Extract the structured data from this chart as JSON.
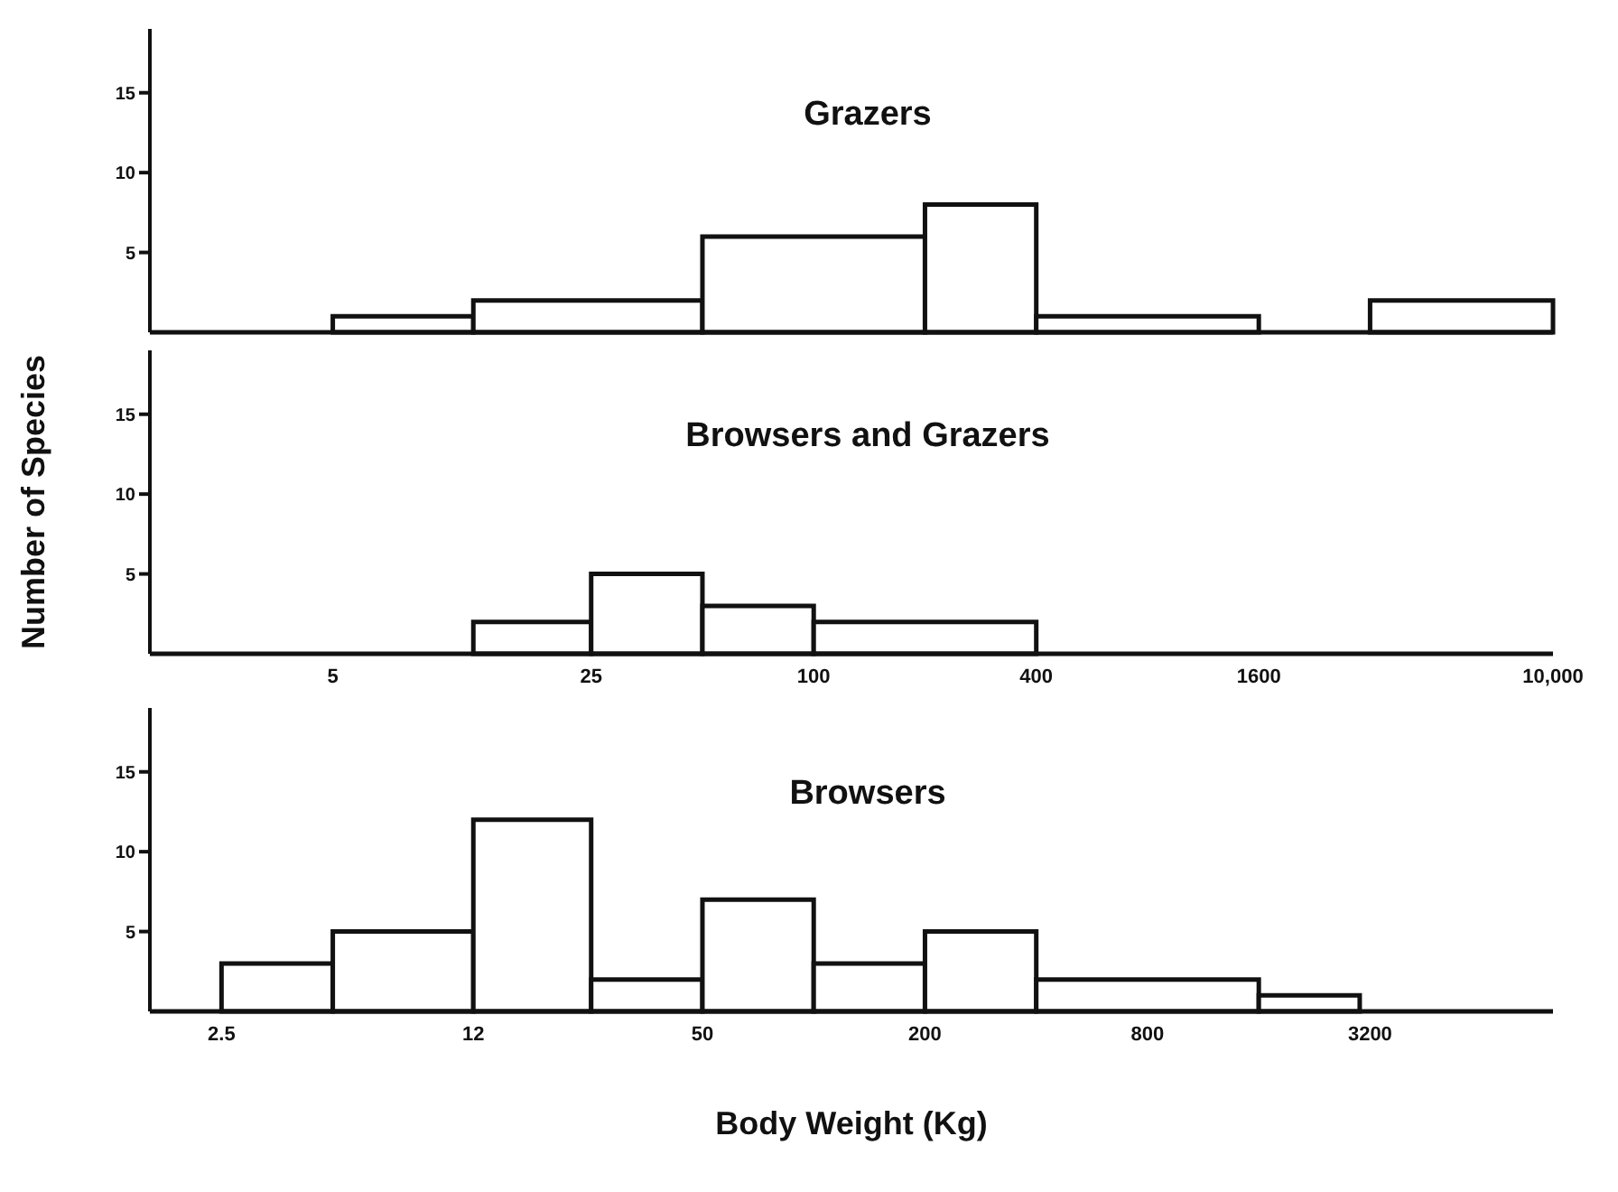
{
  "chart_data": [
    {
      "type": "histogram",
      "title": "Grazers",
      "bins": [
        5,
        12,
        50,
        200,
        400,
        1600,
        3200,
        10000
      ],
      "values": [
        1,
        2,
        6,
        8,
        1,
        0,
        2
      ],
      "color": "#111111",
      "log": "x",
      "xlim": [
        1.6,
        10000
      ],
      "ylim": [
        0,
        19
      ],
      "yticks": [
        5,
        10,
        15
      ],
      "grid": false,
      "tick_labels": "y"
    },
    {
      "type": "histogram",
      "title": "Browsers and Grazers",
      "ylabel": "Number of Species",
      "bins": [
        12,
        25,
        50,
        100,
        400
      ],
      "values": [
        2,
        5,
        3,
        2
      ],
      "color": "#111111",
      "log": "x",
      "xlim": [
        1.6,
        10000
      ],
      "xticks": [
        5,
        25,
        100,
        400,
        1600,
        {
          "value": 10000,
          "label": "10,000"
        }
      ],
      "ylim": [
        0,
        19
      ],
      "yticks": [
        5,
        10,
        15
      ],
      "grid": false
    },
    {
      "type": "histogram",
      "title": "Browsers",
      "xlabel": "Body Weight (Kg)",
      "bins": [
        2.5,
        5,
        12,
        25,
        50,
        100,
        200,
        400,
        1600,
        3000
      ],
      "values": [
        3,
        5,
        12,
        2,
        7,
        3,
        5,
        2,
        1
      ],
      "color": "#111111",
      "log": "x",
      "xlim": [
        1.6,
        10000
      ],
      "xticks": [
        2.5,
        12,
        50,
        200,
        800,
        3200
      ],
      "ylim": [
        0,
        19
      ],
      "yticks": [
        5,
        10,
        15
      ],
      "grid": false
    }
  ]
}
